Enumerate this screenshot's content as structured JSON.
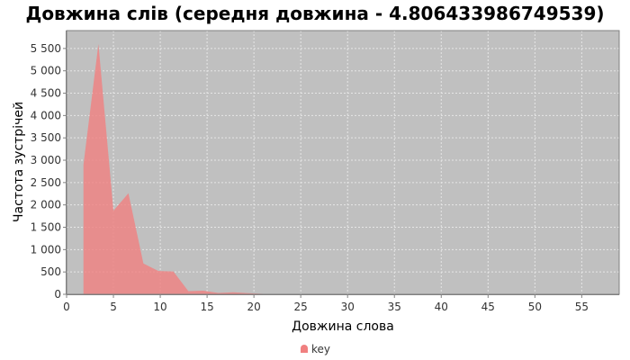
{
  "chart_data": {
    "type": "area",
    "title": "Довжина слів (середня довжина - 4.806433986749539)",
    "xlabel": "Довжина слова",
    "ylabel": "Частота зустрічей",
    "xlim": [
      0,
      59
    ],
    "ylim": [
      0,
      5900
    ],
    "x_ticks": [
      0,
      5,
      10,
      15,
      20,
      25,
      30,
      35,
      40,
      45,
      50,
      55
    ],
    "y_ticks": [
      0,
      500,
      1000,
      1500,
      2000,
      2500,
      3000,
      3500,
      4000,
      4500,
      5000,
      5500
    ],
    "y_tick_labels": [
      "0",
      "500",
      "1 000",
      "1 500",
      "2 000",
      "2 500",
      "3 000",
      "3 500",
      "4 000",
      "4 500",
      "5 000",
      "5 500"
    ],
    "grid": true,
    "legend_position": "bottom",
    "series": [
      {
        "name": "key",
        "color": "#f08080",
        "x": [
          1.8,
          3.4,
          5.0,
          6.6,
          8.2,
          9.8,
          11.4,
          13.0,
          14.6,
          16.2,
          17.8,
          19.4,
          21.0,
          22.6,
          24.2,
          25.8,
          27.4,
          29.0,
          30.6
        ],
        "values": [
          2900,
          5600,
          1870,
          2260,
          690,
          520,
          510,
          70,
          80,
          30,
          45,
          25,
          10,
          8,
          6,
          4,
          3,
          2,
          0
        ]
      }
    ],
    "background_color": "#c0c0c0",
    "grid_color": "#e6e6e6"
  }
}
